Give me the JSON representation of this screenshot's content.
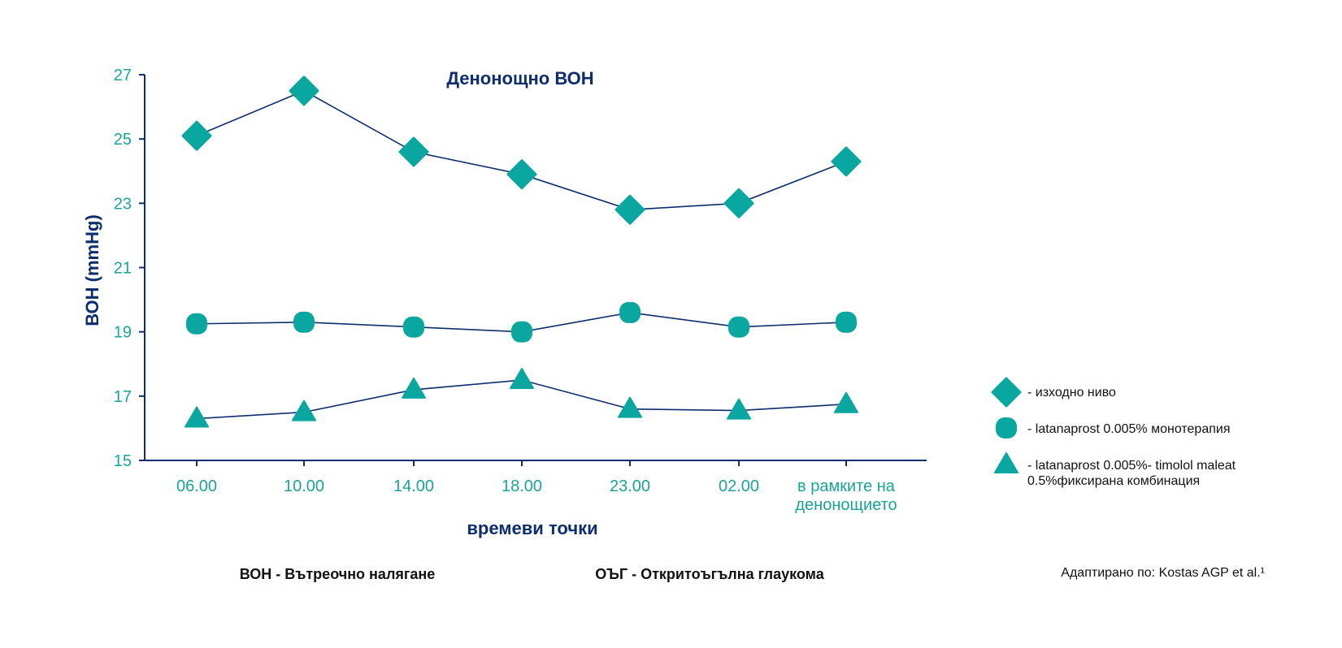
{
  "chart_data": {
    "type": "line",
    "title": "Денонощно ВОН",
    "xlabel": "времеви точки",
    "ylabel": "ВОН (mmHg)",
    "ylim": [
      15,
      27
    ],
    "yticks": [
      15,
      17,
      19,
      21,
      23,
      25,
      27
    ],
    "categories": [
      "06.00",
      "10.00",
      "14.00",
      "18.00",
      "23.00",
      "02.00",
      "в рамките на денонощието"
    ],
    "category_lines": [
      [
        "06.00"
      ],
      [
        "10.00"
      ],
      [
        "14.00"
      ],
      [
        "18.00"
      ],
      [
        "23.00"
      ],
      [
        "02.00"
      ],
      [
        "в рамките на",
        "денонощието"
      ]
    ],
    "series": [
      {
        "name": "- изходно ниво",
        "marker": "diamond",
        "values": [
          25.1,
          26.5,
          24.6,
          23.9,
          22.8,
          23.0,
          24.3
        ]
      },
      {
        "name": "- latanaprost 0.005% монотерапия",
        "marker": "circle",
        "values": [
          19.25,
          19.3,
          19.15,
          19.0,
          19.6,
          19.15,
          19.3
        ]
      },
      {
        "name": "- latanaprost 0.005%- timolol maleat 0.5%фиксирана комбинация",
        "marker": "triangle",
        "values": [
          16.3,
          16.5,
          17.2,
          17.5,
          16.6,
          16.55,
          16.75
        ]
      }
    ],
    "legend": {
      "placement": "right",
      "items": [
        {
          "marker": "diamond",
          "lines": [
            "- изходно ниво"
          ]
        },
        {
          "marker": "circle",
          "lines": [
            "- latanaprost 0.005% монотерапия"
          ]
        },
        {
          "marker": "triangle",
          "lines": [
            "- latanaprost 0.005%- timolol maleat",
            "0.5%фиксирана комбинация"
          ]
        }
      ]
    },
    "grid": false
  },
  "notes": {
    "left": "ВОН - Вътреочно налягане",
    "middle": "ОЪГ - Откритоъгълна глаукома",
    "source": "Адаптирано по: Kostas AGP et al.¹"
  },
  "colors": {
    "marker": "#0aa6a0",
    "line": "#0d2d6c",
    "tick_label": "#1aa39a",
    "axis_title": "#0d2d6c"
  }
}
